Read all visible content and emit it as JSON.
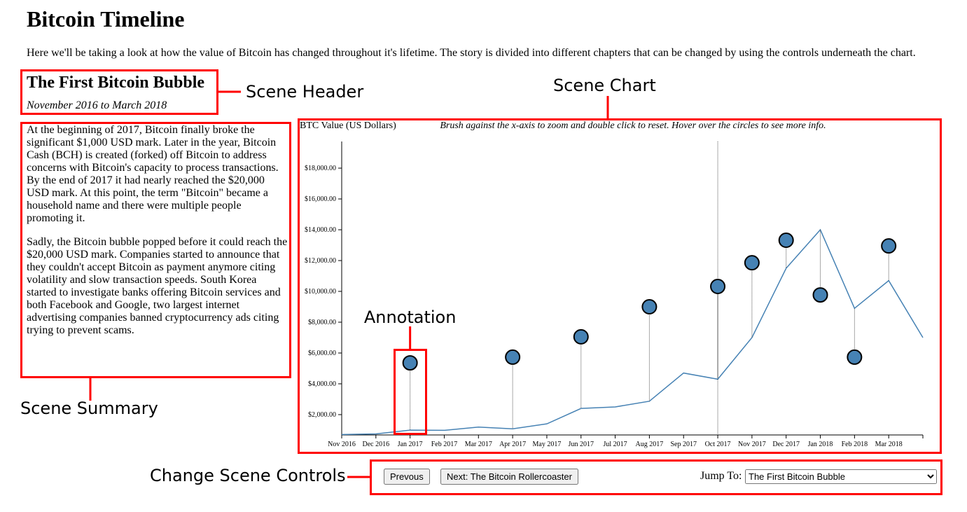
{
  "header": {
    "title": "Bitcoin Timeline",
    "intro": "Here we'll be taking a look at how the value of Bitcoin has changed throughout it's lifetime. The story is divided into different chapters that can be changed by using the controls underneath the chart."
  },
  "scene": {
    "title": "The First Bitcoin Bubble",
    "subtitle": "November 2016 to March 2018",
    "summary": [
      "At the beginning of 2017, Bitcoin finally broke the significant $1,000 USD mark. Later in the year, Bitcoin Cash (BCH) is created (forked) off Bitcoin to address concerns with Bitcoin's capacity to process transactions. By the end of 2017 it had nearly reached the $20,000 USD mark. At this point, the term \"Bitcoin\" became a household name and there were multiple people promoting it.",
      "Sadly, the Bitcoin bubble popped before it could reach the $20,000 USD mark. Companies started to announce that they couldn't accept Bitcoin as payment anymore citing volatility and slow transaction speeds. South Korea started to investigate banks offering Bitcoin services and both Facebook and Google, two largest internet advertising companies banned cryptocurrency ads citing trying to prevent scams."
    ]
  },
  "chart_data": {
    "type": "line",
    "y_label": "BTC Value (US Dollars)",
    "instruction": "Brush against the x-axis to zoom and double click to reset. Hover over the circles to see more info.",
    "color": "#4682b4",
    "x": [
      "2016-11",
      "2016-12",
      "2017-01",
      "2017-02",
      "2017-03",
      "2017-04",
      "2017-05",
      "2017-06",
      "2017-07",
      "2017-08",
      "2017-09",
      "2017-10",
      "2017-11",
      "2017-12",
      "2018-01",
      "2018-02",
      "2018-03",
      "2018-04"
    ],
    "values": [
      710,
      750,
      990,
      980,
      1190,
      1080,
      1400,
      2400,
      2500,
      2870,
      4700,
      4300,
      7000,
      11500,
      14000,
      8900,
      10700,
      7000
    ],
    "xlim": [
      "2016-11",
      "2018-04"
    ],
    "ylim": [
      680,
      19730
    ],
    "xticks": [
      {
        "value": "2016-11",
        "label": "Nov 2016"
      },
      {
        "value": "2016-12",
        "label": "Dec 2016"
      },
      {
        "value": "2017-01",
        "label": "Jan 2017"
      },
      {
        "value": "2017-02",
        "label": "Feb 2017"
      },
      {
        "value": "2017-03",
        "label": "Mar 2017"
      },
      {
        "value": "2017-04",
        "label": "Apr 2017"
      },
      {
        "value": "2017-05",
        "label": "May 2017"
      },
      {
        "value": "2017-06",
        "label": "Jun 2017"
      },
      {
        "value": "2017-07",
        "label": "Jul 2017"
      },
      {
        "value": "2017-08",
        "label": "Aug 2017"
      },
      {
        "value": "2017-09",
        "label": "Sep 2017"
      },
      {
        "value": "2017-10",
        "label": "Oct 2017"
      },
      {
        "value": "2017-11",
        "label": "Nov 2017"
      },
      {
        "value": "2017-12",
        "label": "Dec 2017"
      },
      {
        "value": "2018-01",
        "label": "Jan 2018"
      },
      {
        "value": "2018-02",
        "label": "Feb 2018"
      },
      {
        "value": "2018-03",
        "label": "Mar 2018"
      }
    ],
    "yticks": [
      {
        "value": 2000,
        "label": "$2,000.00"
      },
      {
        "value": 4000,
        "label": "$4,000.00"
      },
      {
        "value": 6000,
        "label": "$6,000.00"
      },
      {
        "value": 8000,
        "label": "$8,000.00"
      },
      {
        "value": 10000,
        "label": "$10,000.00"
      },
      {
        "value": 12000,
        "label": "$12,000.00"
      },
      {
        "value": 14000,
        "label": "$14,000.00"
      },
      {
        "value": 16000,
        "label": "$16,000.00"
      },
      {
        "value": 18000,
        "label": "$18,000.00"
      }
    ],
    "reference_x": "2017-10",
    "annotations": [
      {
        "x": "2017-01",
        "y": 5360
      },
      {
        "x": "2017-04",
        "y": 5730
      },
      {
        "x": "2017-06",
        "y": 7050
      },
      {
        "x": "2017-08",
        "y": 9000
      },
      {
        "x": "2017-10",
        "y": 10320
      },
      {
        "x": "2017-11",
        "y": 11860
      },
      {
        "x": "2017-12",
        "y": 13320
      },
      {
        "x": "2018-01",
        "y": 9770
      },
      {
        "x": "2018-02",
        "y": 5730
      },
      {
        "x": "2018-03",
        "y": 12950
      }
    ]
  },
  "controls": {
    "previous": "Prevous",
    "next": "Next: The Bitcoin Rollercoaster",
    "jump_label": "Jump To:",
    "jump_selected": "The First Bitcoin Bubble"
  },
  "callouts": {
    "header": "Scene Header",
    "chart": "Scene Chart",
    "summary": "Scene Summary",
    "controls": "Change Scene Controls",
    "annotation": "Annotation"
  }
}
